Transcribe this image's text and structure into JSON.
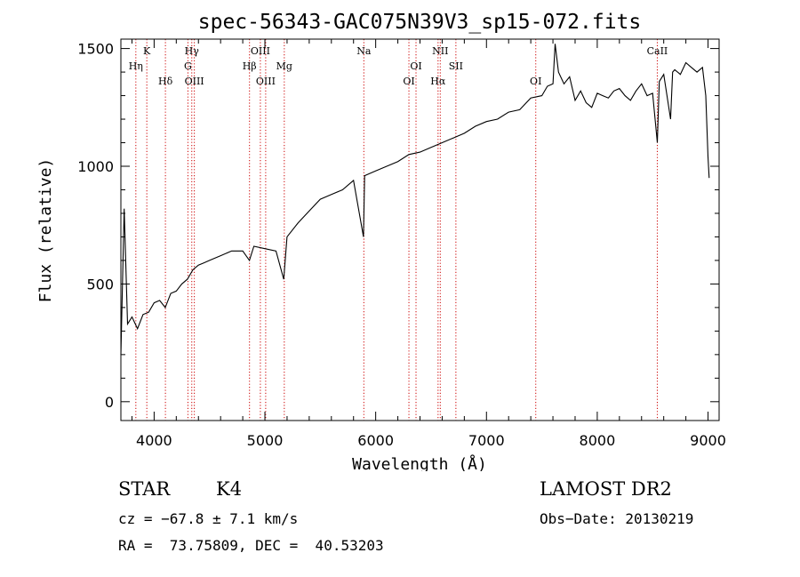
{
  "chart_data": {
    "type": "line",
    "title": "spec-56343-GAC075N39V3_sp15-072.fits",
    "xlabel": "Wavelength (Å)",
    "ylabel": "Flux (relative)",
    "xlim": [
      3700,
      9100
    ],
    "ylim": [
      -80,
      1540
    ],
    "x_ticks": [
      4000,
      5000,
      6000,
      7000,
      8000,
      9000
    ],
    "x_tick_labels": [
      "4000",
      "5000",
      "6000",
      "7000",
      "8000",
      "9000"
    ],
    "y_ticks": [
      0,
      500,
      1000,
      1500
    ],
    "y_tick_labels": [
      "0",
      "500",
      "1000",
      "1500"
    ],
    "grid": false,
    "line_color": "#000000",
    "marker_color": "#cc0000",
    "series": [
      {
        "x": [
          3700,
          3730,
          3760,
          3800,
          3850,
          3900,
          3950,
          4000,
          4050,
          4100,
          4150,
          4200,
          4250,
          4300,
          4350,
          4400,
          4450,
          4500,
          4600,
          4700,
          4800,
          4860,
          4900,
          5000,
          5100,
          5170,
          5200,
          5300,
          5400,
          5500,
          5600,
          5700,
          5800,
          5890,
          5900,
          6000,
          6100,
          6200,
          6300,
          6400,
          6500,
          6600,
          6700,
          6800,
          6900,
          7000,
          7100,
          7200,
          7300,
          7400,
          7500,
          7550,
          7600,
          7620,
          7650,
          7700,
          7750,
          7800,
          7850,
          7900,
          7950,
          8000,
          8050,
          8100,
          8150,
          8200,
          8250,
          8300,
          8350,
          8400,
          8450,
          8500,
          8542,
          8560,
          8600,
          8662,
          8680,
          8700,
          8750,
          8800,
          8850,
          8900,
          8950,
          8980,
          9000,
          9010
        ],
        "y": [
          200,
          820,
          330,
          360,
          310,
          370,
          380,
          420,
          430,
          400,
          460,
          470,
          500,
          520,
          560,
          580,
          590,
          600,
          620,
          640,
          640,
          600,
          660,
          650,
          640,
          520,
          700,
          760,
          810,
          860,
          880,
          900,
          940,
          700,
          960,
          980,
          1000,
          1020,
          1050,
          1060,
          1080,
          1100,
          1120,
          1140,
          1170,
          1190,
          1200,
          1230,
          1240,
          1290,
          1300,
          1340,
          1350,
          1520,
          1400,
          1350,
          1380,
          1280,
          1320,
          1270,
          1250,
          1310,
          1300,
          1290,
          1320,
          1330,
          1300,
          1280,
          1320,
          1350,
          1300,
          1310,
          1100,
          1360,
          1390,
          1200,
          1400,
          1410,
          1390,
          1440,
          1420,
          1400,
          1420,
          1300,
          1040,
          950
        ]
      }
    ],
    "line_markers": [
      {
        "label": "Hη",
        "wavelength": 3835,
        "row": 2
      },
      {
        "label": "K",
        "wavelength": 3934,
        "row": 1
      },
      {
        "label": "Hδ",
        "wavelength": 4102,
        "row": 3
      },
      {
        "label": "Hγ",
        "wavelength": 4340,
        "row": 1
      },
      {
        "label": "G",
        "wavelength": 4305,
        "row": 2
      },
      {
        "label": "OIII",
        "wavelength": 4363,
        "row": 3
      },
      {
        "label": "OIII",
        "wavelength": 4959,
        "row": 1
      },
      {
        "label": "Hβ",
        "wavelength": 4861,
        "row": 2
      },
      {
        "label": "OIII",
        "wavelength": 5007,
        "row": 3
      },
      {
        "label": "Mg",
        "wavelength": 5175,
        "row": 2
      },
      {
        "label": "Na",
        "wavelength": 5893,
        "row": 1
      },
      {
        "label": "OI",
        "wavelength": 6364,
        "row": 2
      },
      {
        "label": "OI",
        "wavelength": 6300,
        "row": 3
      },
      {
        "label": "NII",
        "wavelength": 6583,
        "row": 1
      },
      {
        "label": "Hα",
        "wavelength": 6563,
        "row": 3
      },
      {
        "label": "SII",
        "wavelength": 6724,
        "row": 2
      },
      {
        "label": "OI",
        "wavelength": 7445,
        "row": 3
      },
      {
        "label": "CaII",
        "wavelength": 8542,
        "row": 1
      }
    ]
  },
  "footer": {
    "object_class": "STAR",
    "subclass": "K4",
    "survey": "LAMOST DR2",
    "redshift": "cz = −67.8 ± 7.1 km/s",
    "obs_date": "Obs−Date: 20130219",
    "coords": "RA =  73.75809, DEC =  40.53203"
  }
}
